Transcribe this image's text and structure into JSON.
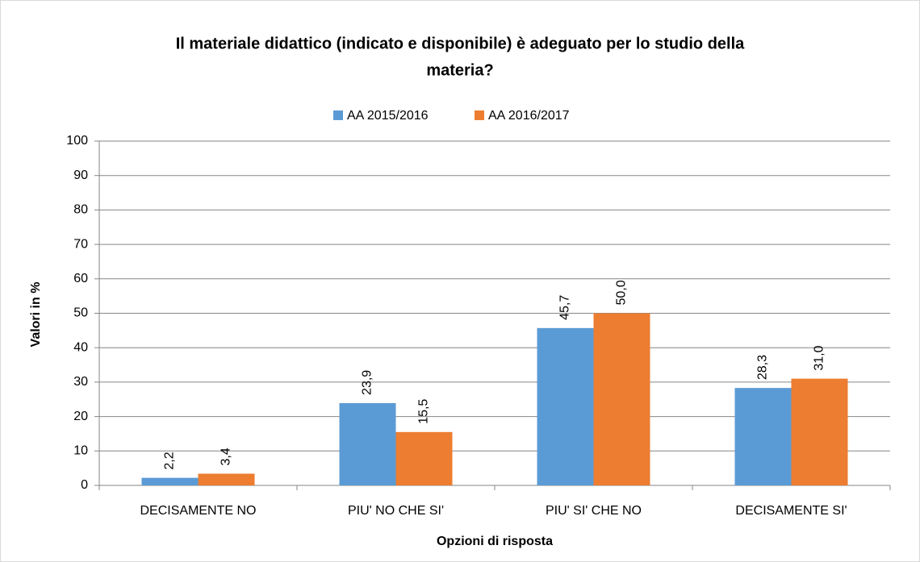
{
  "chart_data": {
    "type": "bar",
    "title": [
      "Il materiale didattico (indicato e disponibile) è adeguato per lo studio della",
      "materia?"
    ],
    "x_label": "Opzioni di risposta",
    "y_label": "Valori in %",
    "categories": [
      "DECISAMENTE NO",
      "PIU' NO CHE SI'",
      "PIU' SI' CHE NO",
      "DECISAMENTE SI'"
    ],
    "series": [
      {
        "name": "AA 2015/2016",
        "color": "#5b9bd5",
        "values": [
          2.2,
          23.9,
          45.7,
          28.3
        ],
        "value_labels": [
          "2,2",
          "23,9",
          "45,7",
          "28,3"
        ]
      },
      {
        "name": "AA 2016/2017",
        "color": "#ed7d31",
        "values": [
          3.4,
          15.5,
          50.0,
          31.0
        ],
        "value_labels": [
          "3,4",
          "15,5",
          "50,0",
          "31,0"
        ]
      }
    ],
    "ylim": [
      0,
      100
    ],
    "yticks": [
      0,
      10,
      20,
      30,
      40,
      50,
      60,
      70,
      80,
      90,
      100
    ],
    "grid": true,
    "legend": "top"
  }
}
